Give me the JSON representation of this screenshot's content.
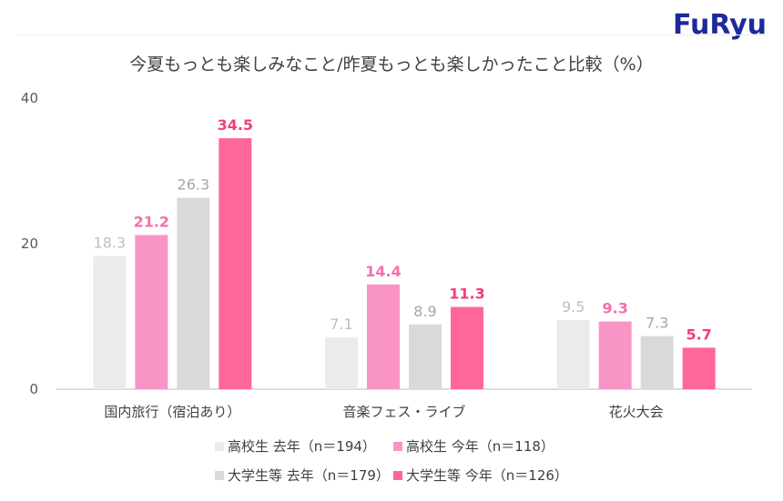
{
  "brand": {
    "logo_text": "FuRyu",
    "logo_color": "#1e2a9a"
  },
  "chart_data": {
    "type": "bar",
    "title": "今夏もっとも楽しみなこと/昨夏もっとも楽しかったこと比較（%）",
    "categories": [
      "国内旅行（宿泊あり）",
      "音楽フェス・ライブ",
      "花火大会"
    ],
    "series": [
      {
        "name": "高校生 去年（n＝194）",
        "values": [
          18.3,
          7.1,
          9.5
        ],
        "color": "#ebebeb",
        "label_color": "#bfbfbf"
      },
      {
        "name": "高校生 今年（n＝118）",
        "values": [
          21.2,
          14.4,
          9.3
        ],
        "color": "#f995c6",
        "label_color": "#f36fb0"
      },
      {
        "name": "大学生等 去年（n＝179）",
        "values": [
          26.3,
          8.9,
          7.3
        ],
        "color": "#d9d9d9",
        "label_color": "#a6a6a6"
      },
      {
        "name": "大学生等 今年（n＝126）",
        "values": [
          34.5,
          11.3,
          5.7
        ],
        "color": "#ff6699",
        "label_color": "#f23d7f"
      }
    ],
    "yticks": [
      "0",
      "20",
      "40"
    ],
    "ylim": [
      0,
      40
    ],
    "grid": false,
    "legend_position": "bottom"
  }
}
